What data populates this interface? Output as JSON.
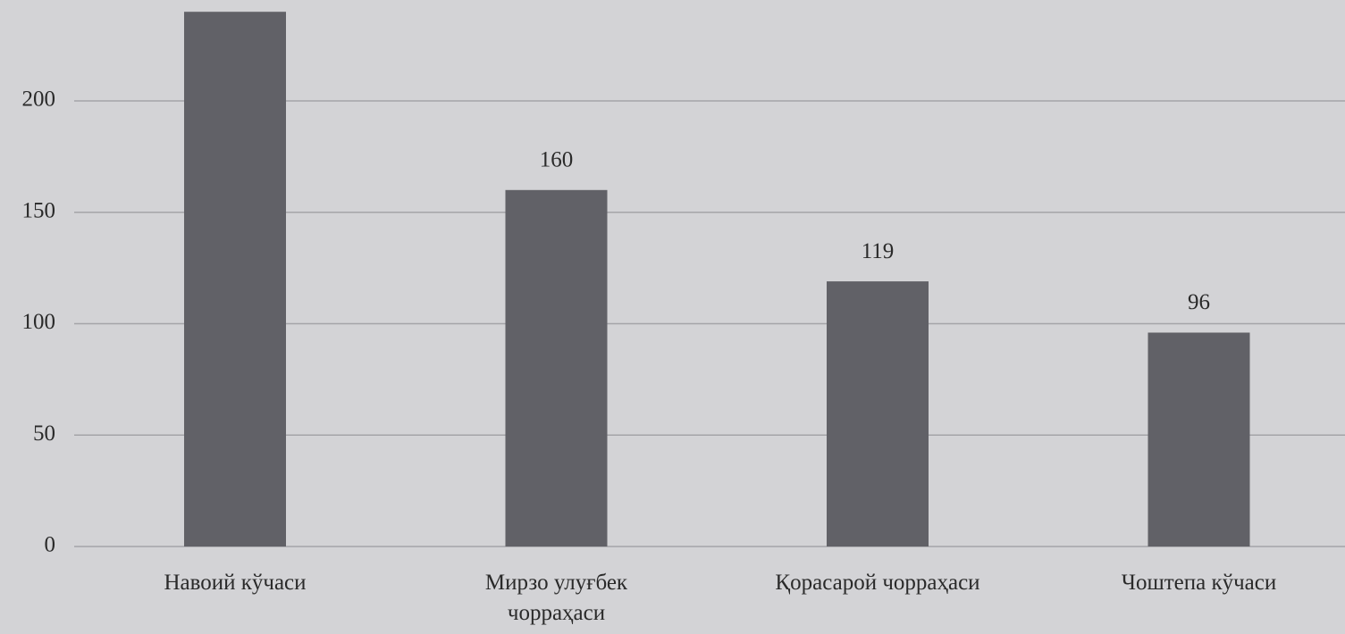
{
  "chart_data": {
    "type": "bar",
    "categories": [
      "Навоий кўчаси",
      "Мирзо улуғбек\nчорраҳаси",
      "Қорасарой чорраҳаси",
      "Чоштепа кўчаси"
    ],
    "values": [
      240,
      160,
      119,
      96
    ],
    "value_labels": [
      null,
      "160",
      "119",
      "96"
    ],
    "color": "#616167",
    "ylim": [
      0,
      245
    ],
    "yticks": [
      0,
      50,
      100,
      150,
      200
    ],
    "grid": true
  }
}
